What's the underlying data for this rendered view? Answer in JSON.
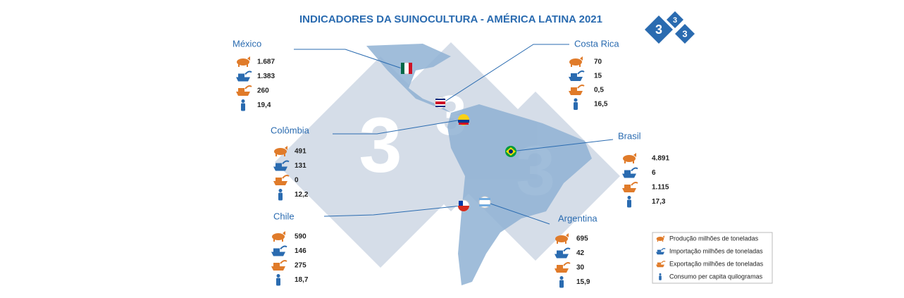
{
  "header": {
    "title": "INDICADORES DA SUINOCULTURA - AMÉRICA LATINA 2021",
    "logo": [
      "3",
      "3",
      "3"
    ]
  },
  "countries": [
    {
      "name": "México",
      "values": [
        "1.687",
        "1.383",
        "260",
        "19,4"
      ]
    },
    {
      "name": "Costa Rica",
      "values": [
        "70",
        "15",
        "0,5",
        "16,5"
      ]
    },
    {
      "name": "Colômbia",
      "values": [
        "491",
        "131",
        "0",
        "12,2"
      ]
    },
    {
      "name": "Brasil",
      "values": [
        "4.891",
        "6",
        "1.115",
        "17,3"
      ]
    },
    {
      "name": "Chile",
      "values": [
        "590",
        "146",
        "275",
        "18,7"
      ]
    },
    {
      "name": "Argentina",
      "values": [
        "695",
        "42",
        "30",
        "15,9"
      ]
    }
  ],
  "legend": [
    "Produção milhões de toneladas",
    "Importação milhões de toneladas",
    "Exportação milhões de toneladas",
    "Consumo per capita quilogramas"
  ]
}
